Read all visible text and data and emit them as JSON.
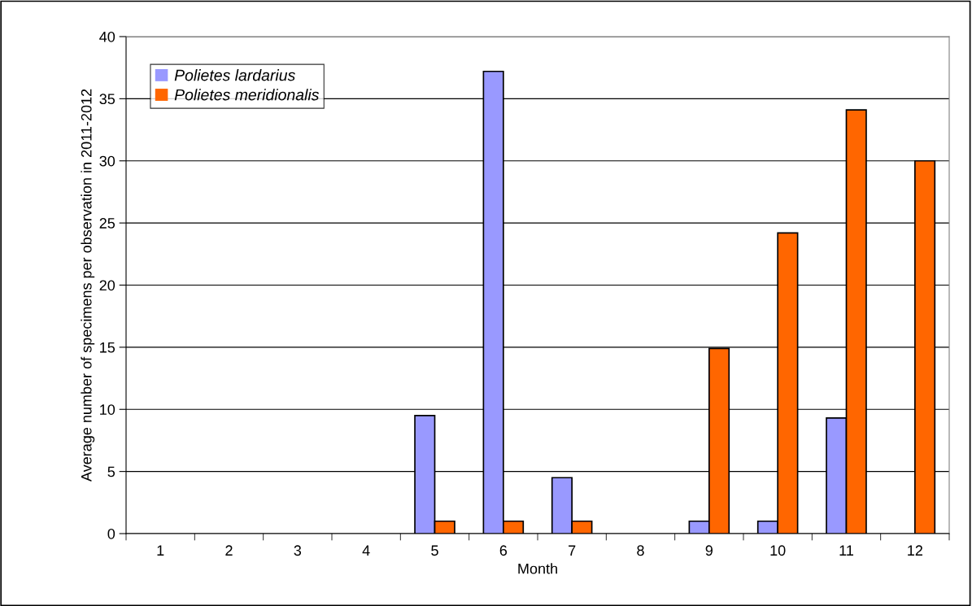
{
  "chart_data": {
    "type": "bar",
    "xlabel": "Month",
    "ylabel": "Average number of specimens per observation in 2011-2012",
    "categories": [
      "1",
      "2",
      "3",
      "4",
      "5",
      "6",
      "7",
      "8",
      "9",
      "10",
      "11",
      "12"
    ],
    "series": [
      {
        "name": "Polietes lardarius",
        "color": "#9999ff",
        "values": [
          0,
          0,
          0,
          0,
          9.5,
          37.2,
          4.5,
          0,
          1.0,
          1.0,
          9.3,
          0
        ]
      },
      {
        "name": "Polietes meridionalis",
        "color": "#ff6600",
        "values": [
          0,
          0,
          0,
          0,
          1.0,
          1.0,
          1.0,
          0,
          14.9,
          24.2,
          34.1,
          30.0
        ]
      }
    ],
    "ylim": [
      0,
      40
    ],
    "yticks": [
      0,
      5,
      10,
      15,
      20,
      25,
      30,
      35,
      40
    ],
    "grid": "y",
    "legend": "top left"
  }
}
